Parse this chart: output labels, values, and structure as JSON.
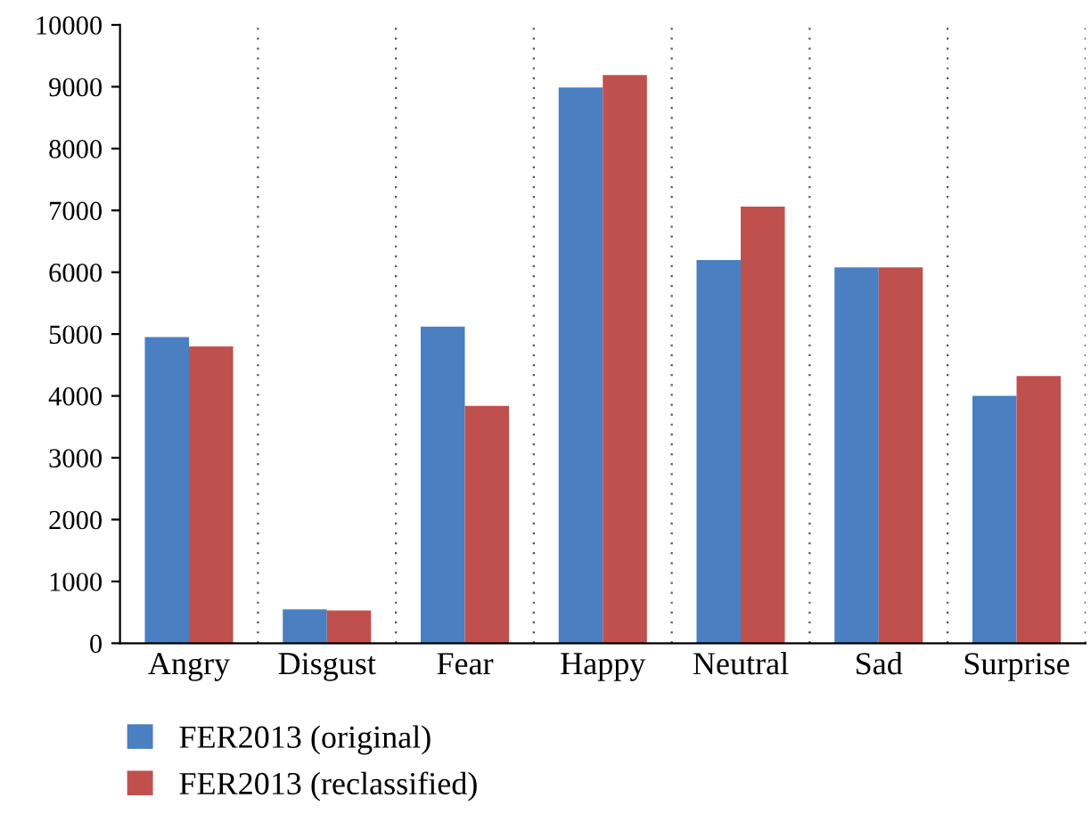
{
  "chart_data": {
    "type": "bar",
    "categories": [
      "Angry",
      "Disgust",
      "Fear",
      "Happy",
      "Neutral",
      "Sad",
      "Surprise"
    ],
    "series": [
      {
        "name": "FER2013 (original)",
        "color": "#4a7fc1",
        "values": [
          4953,
          547,
          5121,
          8989,
          6198,
          6077,
          4002
        ]
      },
      {
        "name": "FER2013 (reclassified)",
        "color": "#c0504d",
        "values": [
          4800,
          530,
          3840,
          9190,
          7060,
          6080,
          4320
        ]
      }
    ],
    "ylim": [
      0,
      10000
    ],
    "yticks": [
      0,
      1000,
      2000,
      3000,
      4000,
      5000,
      6000,
      7000,
      8000,
      9000,
      10000
    ],
    "grid": "x",
    "legend": "bottom left"
  }
}
